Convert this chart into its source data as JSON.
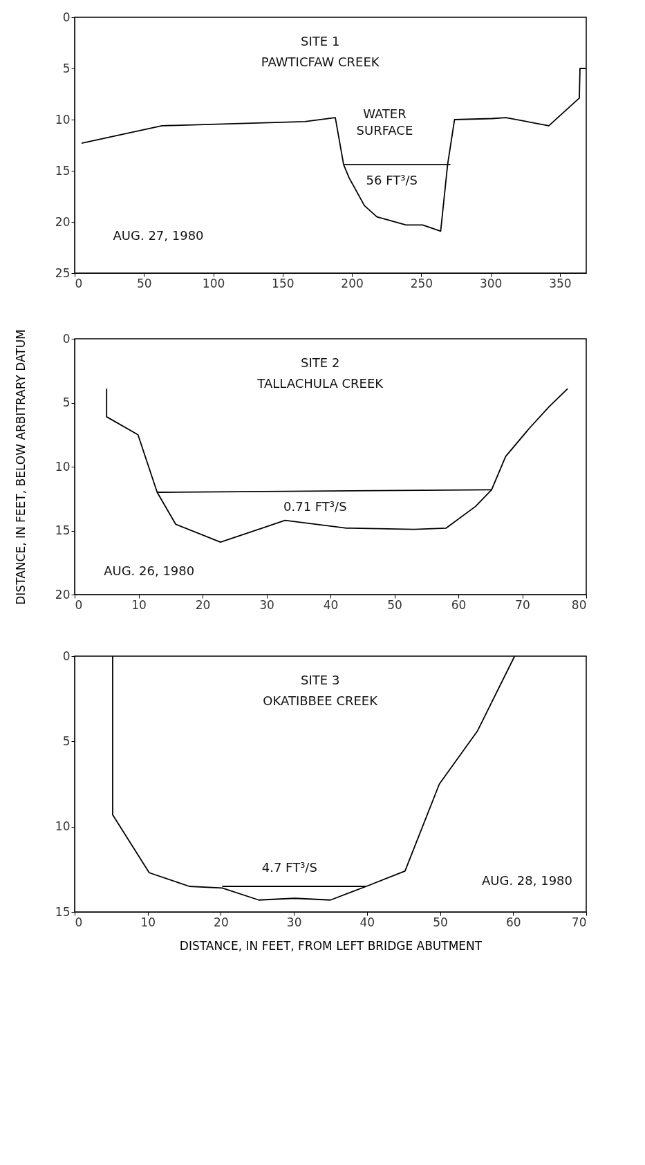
{
  "chart_data": [
    {
      "type": "line",
      "title": "SITE 1",
      "subtitle": "PAWTICFAW CREEK",
      "xlim": [
        0,
        369
      ],
      "ylim": [
        25,
        0
      ],
      "xticks": [
        0,
        50,
        100,
        150,
        200,
        250,
        300,
        350
      ],
      "yticks": [
        0,
        5,
        10,
        15,
        20,
        25
      ],
      "grid": false,
      "marker": "none",
      "line_style": "solid",
      "series": [
        {
          "color": "#000000",
          "x": [
            5,
            63,
            166,
            188,
            194,
            198,
            209,
            218,
            239,
            251,
            264,
            269,
            274,
            301,
            311,
            342,
            364,
            364.5,
            368.6
          ],
          "values": [
            12.3,
            10.6,
            10.2,
            9.8,
            14.4,
            15.7,
            18.4,
            19.5,
            20.3,
            20.3,
            20.9,
            14.4,
            10.0,
            9.9,
            9.8,
            10.6,
            7.9,
            5.0,
            5.0
          ]
        },
        {
          "color": "#000000",
          "x": [
            194,
            271
          ],
          "values": [
            14.4,
            14.4
          ]
        }
      ],
      "annotations": [
        "WATER\nSURFACE",
        "56 FT³/S",
        "AUG. 27, 1980"
      ]
    },
    {
      "type": "line",
      "title": "SITE 2",
      "subtitle": "TALLACHULA CREEK",
      "ylabel": "DISTANCE, IN FEET, BELOW ARBITRARY DATUM",
      "xlim": [
        0,
        80
      ],
      "ylim": [
        20,
        0
      ],
      "xticks": [
        0,
        10,
        20,
        30,
        40,
        50,
        60,
        70,
        80
      ],
      "yticks": [
        0,
        5,
        10,
        15,
        20
      ],
      "grid": false,
      "marker": "none",
      "line_style": "solid",
      "series": [
        {
          "color": "#000000",
          "x": [
            5.0,
            5.0,
            9.9,
            12.9,
            15.8,
            22.8,
            32.9,
            42.5,
            53.1,
            58.1,
            62.7,
            65.2,
            67.4,
            71.1,
            74.2,
            77.1
          ],
          "values": [
            3.9,
            6.1,
            7.5,
            12.0,
            14.5,
            15.9,
            14.2,
            14.8,
            14.9,
            14.8,
            13.1,
            11.8,
            9.2,
            7.0,
            5.3,
            3.9
          ]
        },
        {
          "color": "#000000",
          "x": [
            12.9,
            65.2
          ],
          "values": [
            12.0,
            11.8
          ]
        }
      ],
      "annotations": [
        "0.71 FT³/S",
        "AUG. 26, 1980"
      ]
    },
    {
      "type": "line",
      "title": "SITE 3",
      "subtitle": "OKATIBBEE CREEK",
      "xlabel": "DISTANCE, IN FEET, FROM LEFT BRIDGE ABUTMENT",
      "xlim": [
        0,
        70
      ],
      "ylim": [
        15,
        0
      ],
      "xticks": [
        0,
        10,
        20,
        30,
        40,
        50,
        60,
        70
      ],
      "yticks": [
        0,
        5,
        10,
        15
      ],
      "grid": false,
      "marker": "none",
      "line_style": "solid",
      "series": [
        {
          "color": "#000000",
          "x": [
            5.2,
            5.2,
            10.2,
            15.7,
            20.2,
            25.2,
            30.1,
            35.0,
            39.9,
            45.2,
            49.9,
            55.1,
            60.2
          ],
          "values": [
            0,
            9.3,
            12.7,
            13.5,
            13.6,
            14.3,
            14.2,
            14.3,
            13.5,
            12.6,
            7.5,
            4.4,
            0
          ]
        },
        {
          "color": "#000000",
          "x": [
            20.2,
            39.9
          ],
          "values": [
            13.5,
            13.5
          ]
        }
      ],
      "annotations": [
        "4.7 FT³/S",
        "AUG. 28, 1980"
      ]
    }
  ]
}
